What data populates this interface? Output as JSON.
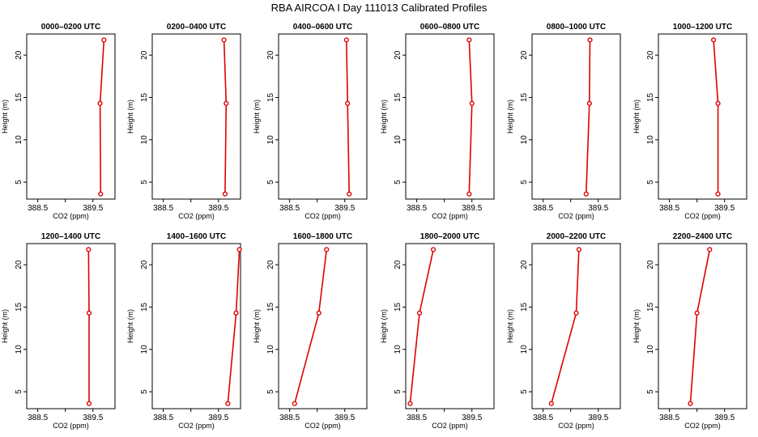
{
  "title": "RBA AIRCOA I  Day 111013  Calibrated Profiles",
  "colors": {
    "profile": "#dd0000",
    "frame": "#000000",
    "background": "#ffffff"
  },
  "chart_data": {
    "type": "line",
    "layout": "2 rows x 6 columns",
    "xlabel": "CO2 (ppm)",
    "ylabel": "Height (m)",
    "xlim": [
      388.3,
      389.9
    ],
    "ylim": [
      3.0,
      22.5
    ],
    "xticks": [
      388.5,
      389.0,
      389.5
    ],
    "xtick_labels": [
      "388.5",
      "",
      "389.5"
    ],
    "yticks": [
      5,
      10,
      15,
      20
    ],
    "heights": [
      3.6,
      14.3,
      21.8
    ],
    "grid": false,
    "legend": "none",
    "panels": [
      {
        "title": "0000–0200 UTC",
        "co2": [
          389.64,
          389.63,
          389.7
        ]
      },
      {
        "title": "0200–0400 UTC",
        "co2": [
          389.62,
          389.64,
          389.6
        ]
      },
      {
        "title": "0400–0600 UTC",
        "co2": [
          389.58,
          389.55,
          389.53
        ]
      },
      {
        "title": "0600–0800 UTC",
        "co2": [
          389.45,
          389.5,
          389.45
        ]
      },
      {
        "title": "0800–1000 UTC",
        "co2": [
          389.28,
          389.34,
          389.35
        ]
      },
      {
        "title": "1000–1200 UTC",
        "co2": [
          389.38,
          389.38,
          389.3
        ]
      },
      {
        "title": "1200–1400 UTC",
        "co2": [
          389.43,
          389.43,
          389.42
        ]
      },
      {
        "title": "1400–1600 UTC",
        "co2": [
          389.67,
          389.82,
          389.88
        ]
      },
      {
        "title": "1600–1800 UTC",
        "co2": [
          388.59,
          389.03,
          389.17
        ]
      },
      {
        "title": "1800–2000 UTC",
        "co2": [
          388.38,
          388.55,
          388.8
        ]
      },
      {
        "title": "2000–2200 UTC",
        "co2": [
          388.65,
          389.1,
          389.15
        ]
      },
      {
        "title": "2200–2400 UTC",
        "co2": [
          388.88,
          389.0,
          389.23
        ]
      }
    ]
  }
}
